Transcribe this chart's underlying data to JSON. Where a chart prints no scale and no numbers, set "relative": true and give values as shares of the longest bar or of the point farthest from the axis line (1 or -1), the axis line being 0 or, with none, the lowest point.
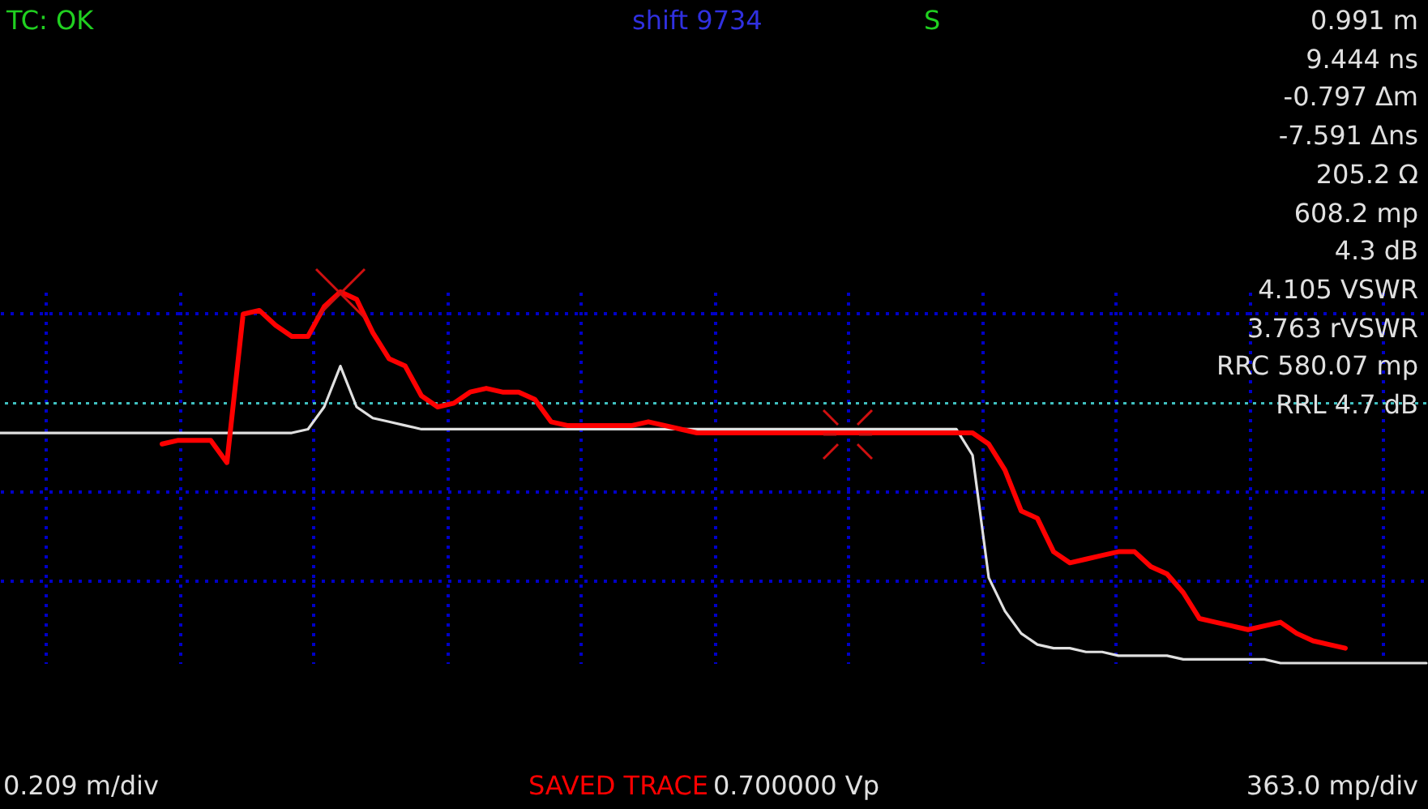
{
  "chart_data": {
    "type": "line",
    "relative": true,
    "grid": true,
    "line_style": "solid",
    "categories": [
      null,
      null,
      null,
      null,
      null,
      null,
      null,
      null,
      null,
      null,
      null,
      null,
      null,
      null,
      null,
      null,
      null,
      null,
      null,
      null,
      null,
      null,
      null,
      null,
      null,
      null,
      null,
      null,
      null,
      null,
      null,
      null,
      null,
      null,
      null,
      null,
      null,
      null,
      null,
      null,
      null,
      null,
      null,
      null,
      null,
      null,
      null,
      null,
      null,
      null,
      null,
      null,
      null,
      null,
      null,
      null,
      null,
      null,
      null,
      null,
      null,
      null,
      null,
      null,
      null,
      null,
      null,
      null,
      null,
      null,
      null,
      null,
      null,
      null,
      null,
      null,
      null,
      null,
      null,
      null,
      null,
      null,
      null,
      null,
      null,
      null,
      null,
      null,
      null
    ],
    "series": [
      {
        "color": "#e0e0e0",
        "values": [
          0.62,
          0.62,
          0.62,
          0.62,
          0.62,
          0.62,
          0.62,
          0.62,
          0.62,
          0.62,
          0.62,
          0.62,
          0.62,
          0.62,
          0.62,
          0.62,
          0.62,
          0.62,
          0.62,
          0.63,
          0.69,
          0.8,
          0.69,
          0.66,
          0.65,
          0.64,
          0.63,
          0.63,
          0.63,
          0.63,
          0.63,
          0.63,
          0.63,
          0.63,
          0.63,
          0.63,
          0.63,
          0.63,
          0.63,
          0.63,
          0.63,
          0.63,
          0.63,
          0.63,
          0.63,
          0.63,
          0.63,
          0.63,
          0.63,
          0.63,
          0.63,
          0.63,
          0.63,
          0.63,
          0.63,
          0.63,
          0.63,
          0.63,
          0.63,
          0.63,
          0.56,
          0.23,
          0.14,
          0.08,
          0.05,
          0.04,
          0.04,
          0.03,
          0.03,
          0.02,
          0.02,
          0.02,
          0.02,
          0.01,
          0.01,
          0.01,
          0.01,
          0.01,
          0.01,
          0,
          0,
          0,
          0,
          0,
          0,
          0,
          0,
          0,
          0
        ]
      },
      {
        "name": "SAVED TRACE",
        "color": "#ff0000",
        "values": [
          null,
          null,
          null,
          null,
          null,
          null,
          null,
          null,
          null,
          null,
          0.59,
          0.6,
          0.6,
          0.6,
          0.54,
          0.94,
          0.95,
          0.91,
          0.88,
          0.88,
          0.96,
          1,
          0.98,
          0.89,
          0.82,
          0.8,
          0.72,
          0.69,
          0.7,
          0.73,
          0.74,
          0.73,
          0.73,
          0.71,
          0.65,
          0.64,
          0.64,
          0.64,
          0.64,
          0.64,
          0.65,
          0.64,
          0.63,
          0.62,
          0.62,
          0.62,
          0.62,
          0.62,
          0.62,
          0.62,
          0.62,
          0.62,
          0.62,
          0.62,
          0.62,
          0.62,
          0.62,
          0.62,
          0.62,
          0.62,
          0.62,
          0.59,
          0.52,
          0.41,
          0.39,
          0.3,
          0.27,
          0.28,
          0.29,
          0.3,
          0.3,
          0.26,
          0.24,
          0.19,
          0.12,
          0.11,
          0.1,
          0.09,
          0.1,
          0.11,
          0.08,
          0.06,
          0.05,
          0.04,
          null,
          null,
          null,
          null,
          null
        ]
      }
    ],
    "ref_lines": [
      {
        "axis": "y",
        "value": 0.7,
        "color": "#40c0c0",
        "line_style": "dotted"
      }
    ],
    "annotations": [
      "TC: OK",
      "shift 9734",
      "S",
      "0.991 m",
      "9.444 ns",
      "-0.797 Δm",
      "-7.591 Δns",
      "205.2 Ω",
      "608.2 mp",
      "4.3 dB",
      "4.105 VSWR",
      "3.763 rVSWR",
      "RRC 580.07 mp",
      "RRL 4.7 dB",
      "0.209 m/div",
      "0.700000 Vp",
      "363.0 mp/div"
    ]
  }
}
